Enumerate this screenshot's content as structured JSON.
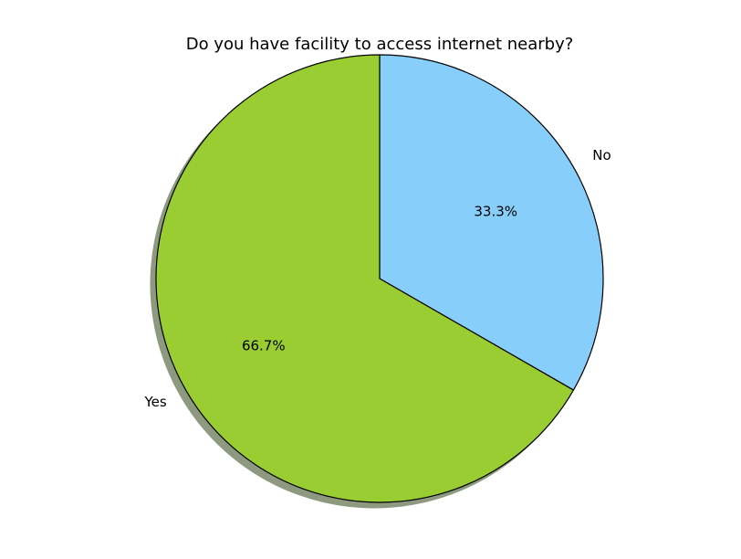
{
  "chart_data": {
    "type": "pie",
    "title": "Do you have facility to access internet nearby?",
    "categories": [
      "No",
      "Yes"
    ],
    "values": [
      33.3,
      66.7
    ],
    "value_labels": [
      "33.3%",
      "66.7%"
    ],
    "colors": [
      "#87CEFA",
      "#9ACD32"
    ],
    "shadow_color": "#8E9A80",
    "edge_color": "#000000",
    "start_angle_deg": 90,
    "direction": "clockwise",
    "shadow": true,
    "legend": "none",
    "grid": false
  }
}
